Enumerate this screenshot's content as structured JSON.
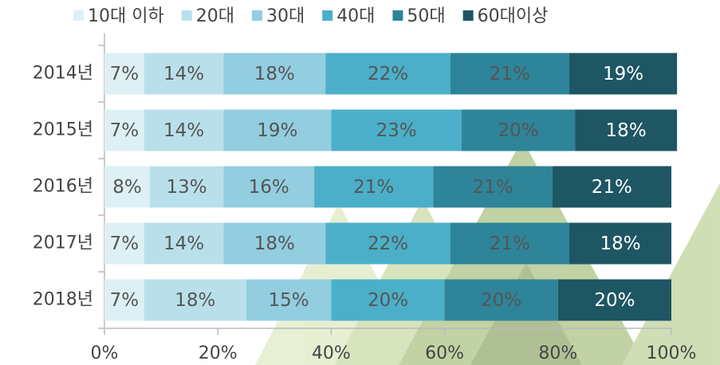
{
  "chart_data": {
    "type": "stacked_bar_horizontal",
    "categories": [
      "2014년",
      "2015년",
      "2016년",
      "2017년",
      "2018년"
    ],
    "series": [
      {
        "name": "10대 이하",
        "color": "#ddf0f5",
        "values": [
          7,
          7,
          8,
          7,
          7
        ],
        "value_labels": [
          "7%",
          "7%",
          "8%",
          "7%",
          "7%"
        ]
      },
      {
        "name": "20대",
        "color": "#b9e0ea",
        "values": [
          14,
          14,
          13,
          14,
          18
        ],
        "value_labels": [
          "14%",
          "14%",
          "13%",
          "14%",
          "18%"
        ]
      },
      {
        "name": "30대",
        "color": "#93cde0",
        "values": [
          18,
          19,
          16,
          18,
          15
        ],
        "value_labels": [
          "18%",
          "19%",
          "16%",
          "18%",
          "15%"
        ]
      },
      {
        "name": "40대",
        "color": "#4bafc9",
        "values": [
          22,
          23,
          21,
          22,
          20
        ],
        "value_labels": [
          "22%",
          "23%",
          "21%",
          "22%",
          "20%"
        ]
      },
      {
        "name": "50대",
        "color": "#2e8499",
        "values": [
          21,
          20,
          21,
          21,
          20
        ],
        "value_labels": [
          "21%",
          "20%",
          "21%",
          "21%",
          "20%"
        ]
      },
      {
        "name": "60대이상",
        "color": "#1e5664",
        "values": [
          19,
          18,
          21,
          18,
          20
        ],
        "value_labels": [
          "19%",
          "18%",
          "21%",
          "18%",
          "20%"
        ]
      }
    ],
    "xlim": [
      0,
      100
    ],
    "xticks": [
      {
        "value": 0,
        "label": "0%"
      },
      {
        "value": 20,
        "label": "20%"
      },
      {
        "value": 40,
        "label": "40%"
      },
      {
        "value": 60,
        "label": "60%"
      },
      {
        "value": 80,
        "label": "80%"
      },
      {
        "value": 100,
        "label": "100%"
      }
    ],
    "legend": "top"
  }
}
